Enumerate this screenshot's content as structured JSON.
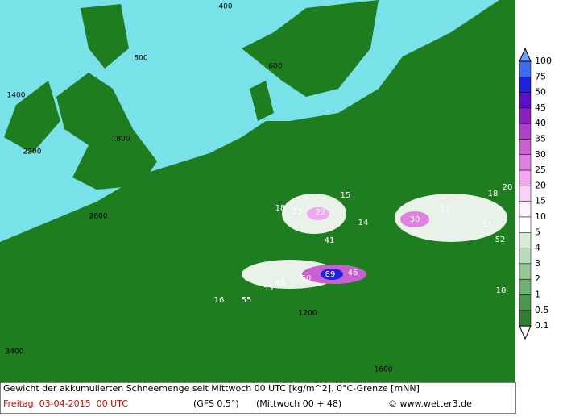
{
  "footer": {
    "description": "Gewicht der akkumulierten Schneemenge seit Mittwoch 00 UTC [kg/m^2]. 0°C-Grenze [mNN]",
    "date": "Freitag, 03-04-2015  00 UTC",
    "model": "(GFS 0.5°)",
    "run": "(Mittwoch 00 + 48)",
    "credit": "© www.wetter3.de"
  },
  "legend": {
    "labels": [
      100,
      75,
      50,
      45,
      40,
      35,
      30,
      25,
      20,
      15,
      10,
      5,
      4,
      3,
      2,
      1,
      0.5,
      0.1
    ],
    "colors": [
      "#3c6cf0",
      "#2020e0",
      "#5a10c8",
      "#8a20c0",
      "#b040c8",
      "#c860d0",
      "#e080e0",
      "#f0a8f0",
      "#f8d0f8",
      "#fff0ff",
      "#ffffff",
      "#d8ecd8",
      "#b8dcb8",
      "#98c898",
      "#70b070",
      "#4a984a",
      "#2e802e"
    ],
    "top_color": "#6fa0ff",
    "bottom_color": "#ffffff"
  },
  "map_labels": [
    "89",
    "46",
    "55",
    "45",
    "53",
    "50",
    "30",
    "52",
    "33",
    "41",
    "22",
    "23",
    "18",
    "15",
    "14",
    "13",
    "20",
    "16",
    "10",
    "18",
    "1800",
    "2200",
    "1400",
    "800",
    "600",
    "400",
    "2600",
    "1600",
    "3400",
    "1200"
  ]
}
